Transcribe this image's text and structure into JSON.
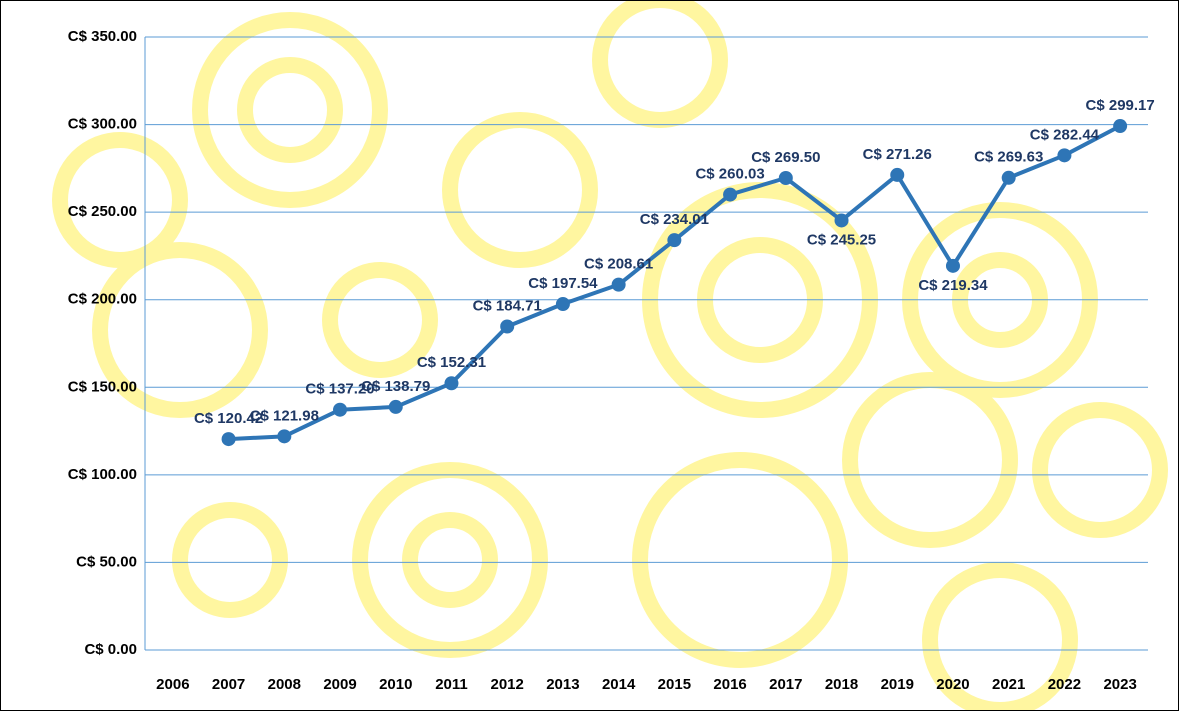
{
  "chart_data": {
    "type": "line",
    "categories": [
      "2006",
      "2007",
      "2008",
      "2009",
      "2010",
      "2011",
      "2012",
      "2013",
      "2014",
      "2015",
      "2016",
      "2017",
      "2018",
      "2019",
      "2020",
      "2021",
      "2022",
      "2023"
    ],
    "series": [
      {
        "color": "#2e75b6",
        "values": [
          null,
          120.42,
          121.98,
          137.2,
          138.79,
          152.31,
          184.71,
          197.54,
          208.61,
          234.01,
          260.03,
          269.5,
          245.25,
          271.26,
          219.34,
          269.63,
          282.44,
          299.17
        ],
        "value_labels": [
          null,
          "C$ 120.42",
          "C$ 121.98",
          "C$ 137.20",
          "C$ 138.79",
          "C$ 152.31",
          "C$ 184.71",
          "C$ 197.54",
          "C$ 208.61",
          "C$ 234.01",
          "C$ 260.03",
          "C$ 269.50",
          "C$ 245.25",
          "C$ 271.26",
          "C$ 219.34",
          "C$ 269.63",
          "C$ 282.44",
          "C$ 299.17"
        ]
      }
    ],
    "ylim": [
      0,
      350
    ],
    "yticks": [
      {
        "value": 0,
        "label": "C$ 0.00"
      },
      {
        "value": 50,
        "label": "C$ 50.00"
      },
      {
        "value": 100,
        "label": "C$ 100.00"
      },
      {
        "value": 150,
        "label": "C$ 150.00"
      },
      {
        "value": 200,
        "label": "C$ 200.00"
      },
      {
        "value": 250,
        "label": "C$ 250.00"
      },
      {
        "value": 300,
        "label": "C$ 300.00"
      },
      {
        "value": 350,
        "label": "C$ 350.00"
      }
    ],
    "grid": true
  }
}
